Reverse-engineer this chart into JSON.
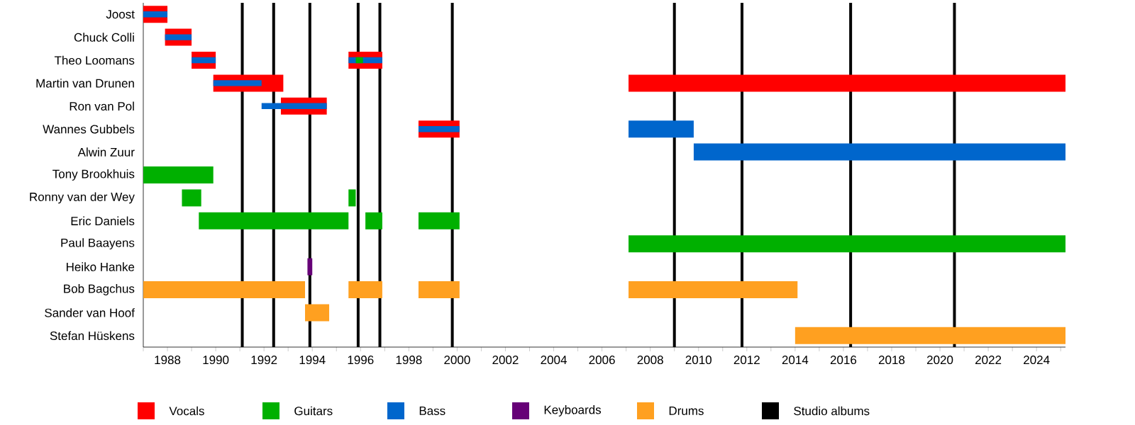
{
  "chart_data": {
    "type": "bar",
    "orientation": "horizontal",
    "legend": "bottom",
    "grid": false,
    "categories": [
      "Joost",
      "Chuck Colli",
      "Theo Loomans",
      "Martin van Drunen",
      "Ron van Pol",
      "Wannes Gubbels",
      "Alwin Zuur",
      "Tony Brookhuis",
      "Ronny van der Wey",
      "Eric Daniels",
      "Paul Baayens",
      "Heiko Hanke",
      "Bob Bagchus",
      "Sander van Hoof",
      "Stefan Hüskens"
    ],
    "xlim": [
      1987,
      2025.2
    ],
    "xticks": [
      {
        "value": 1987,
        "label": null
      },
      1988,
      {
        "value": 1989,
        "label": null
      },
      1990,
      {
        "value": 1991,
        "label": null
      },
      1992,
      {
        "value": 1993,
        "label": null
      },
      1994,
      {
        "value": 1995,
        "label": null
      },
      1996,
      {
        "value": 1997,
        "label": null
      },
      1998,
      {
        "value": 1999,
        "label": null
      },
      2000,
      {
        "value": 2001,
        "label": null
      },
      2002,
      {
        "value": 2003,
        "label": null
      },
      2004,
      {
        "value": 2005,
        "label": null
      },
      2006,
      {
        "value": 2007,
        "label": null
      },
      2008,
      {
        "value": 2009,
        "label": null
      },
      2010,
      {
        "value": 2011,
        "label": null
      },
      2012,
      {
        "value": 2013,
        "label": null
      },
      2014,
      {
        "value": 2015,
        "label": null
      },
      2016,
      {
        "value": 2017,
        "label": null
      },
      2018,
      {
        "value": 2019,
        "label": null
      },
      2020,
      {
        "value": 2021,
        "label": null
      },
      2022,
      {
        "value": 2023,
        "label": null
      },
      2024,
      {
        "value": 2025,
        "label": null
      }
    ],
    "series": [
      {
        "name": "Vocals",
        "color": "#ff0000",
        "base": [
          1987.0,
          1987.9,
          1989.0,
          1989.9,
          1992.7,
          1998.4,
          null,
          null,
          null,
          null,
          null,
          null,
          null,
          null,
          null
        ],
        "values": [
          1.0,
          1.1,
          1.0,
          2.9,
          1.9,
          1.7,
          null,
          null,
          null,
          null,
          null,
          null,
          null,
          null,
          null
        ]
      },
      {
        "color": "#ff0000",
        "base": [
          null,
          null,
          1995.5,
          2007.1,
          null,
          null,
          null,
          null,
          null,
          null,
          null,
          null,
          null,
          null,
          null
        ],
        "values": [
          null,
          null,
          1.4,
          18.1,
          null,
          null,
          null,
          null,
          null,
          null,
          null,
          null,
          null,
          null,
          null
        ]
      },
      {
        "name": "Guitars",
        "color": "#00b000",
        "base": [
          null,
          null,
          null,
          null,
          null,
          null,
          null,
          1987.0,
          1988.6,
          1989.3,
          2007.1,
          null,
          null,
          null,
          null
        ],
        "values": [
          null,
          null,
          null,
          null,
          null,
          null,
          null,
          2.9,
          0.8,
          6.2,
          18.1,
          null,
          null,
          null,
          null
        ]
      },
      {
        "color": "#00b000",
        "base": [
          null,
          null,
          null,
          null,
          null,
          null,
          null,
          null,
          1995.5,
          1996.2,
          null,
          null,
          null,
          null,
          null
        ],
        "values": [
          null,
          null,
          null,
          null,
          null,
          null,
          null,
          null,
          0.3,
          0.7,
          null,
          null,
          null,
          null,
          null
        ]
      },
      {
        "color": "#00b000",
        "base": [
          null,
          null,
          null,
          null,
          null,
          null,
          null,
          null,
          null,
          1998.4,
          null,
          null,
          null,
          null,
          null
        ],
        "values": [
          null,
          null,
          null,
          null,
          null,
          null,
          null,
          null,
          null,
          1.7,
          null,
          null,
          null,
          null,
          null
        ]
      },
      {
        "name": "Bass",
        "color": "#0066cc",
        "base": [
          1987.0,
          1987.9,
          1989.0,
          1989.9,
          1991.9,
          1998.4,
          null,
          null,
          null,
          null,
          null,
          null,
          null,
          null,
          null
        ],
        "values": [
          1.0,
          1.1,
          1.0,
          2.0,
          2.7,
          1.7,
          null,
          null,
          null,
          null,
          null,
          null,
          null,
          null,
          null
        ]
      },
      {
        "color": "#0066cc",
        "base": [
          null,
          null,
          1995.5,
          null,
          null,
          2007.1,
          2009.8,
          null,
          null,
          null,
          null,
          null,
          null,
          null,
          null
        ],
        "values": [
          null,
          null,
          1.4,
          null,
          null,
          2.7,
          15.4,
          null,
          null,
          null,
          null,
          null,
          null,
          null,
          null
        ]
      },
      {
        "color": "#00b000",
        "base": [
          null,
          null,
          1995.8,
          null,
          null,
          null,
          null,
          null,
          null,
          null,
          null,
          null,
          null,
          null,
          null
        ],
        "values": [
          null,
          null,
          0.3,
          null,
          null,
          null,
          null,
          null,
          null,
          null,
          null,
          null,
          null,
          null,
          null
        ]
      },
      {
        "name": "Keyboards",
        "color": "#660077",
        "base": [
          null,
          null,
          null,
          null,
          null,
          null,
          null,
          null,
          null,
          null,
          null,
          1993.8,
          null,
          null,
          null
        ],
        "values": [
          null,
          null,
          null,
          null,
          null,
          null,
          null,
          null,
          null,
          null,
          null,
          0.2,
          null,
          null,
          null
        ]
      },
      {
        "name": "Drums",
        "color": "#ffa020",
        "base": [
          null,
          null,
          null,
          null,
          null,
          null,
          null,
          null,
          null,
          null,
          null,
          null,
          1987.0,
          1993.7,
          2014.0
        ],
        "values": [
          null,
          null,
          null,
          null,
          null,
          null,
          null,
          null,
          null,
          null,
          null,
          null,
          6.7,
          1.0,
          11.2
        ]
      },
      {
        "color": "#ffa020",
        "base": [
          null,
          null,
          null,
          null,
          null,
          null,
          null,
          null,
          null,
          null,
          null,
          null,
          1995.5,
          null,
          null
        ],
        "values": [
          null,
          null,
          null,
          null,
          null,
          null,
          null,
          null,
          null,
          null,
          null,
          null,
          1.4,
          null,
          null
        ]
      },
      {
        "color": "#ffa020",
        "base": [
          null,
          null,
          null,
          null,
          null,
          null,
          null,
          null,
          null,
          null,
          null,
          null,
          1998.4,
          null,
          null
        ],
        "values": [
          null,
          null,
          null,
          null,
          null,
          null,
          null,
          null,
          null,
          null,
          null,
          null,
          1.7,
          null,
          null
        ]
      },
      {
        "color": "#ffa020",
        "base": [
          null,
          null,
          null,
          null,
          null,
          null,
          null,
          null,
          null,
          null,
          null,
          null,
          2007.1,
          null,
          null
        ],
        "values": [
          null,
          null,
          null,
          null,
          null,
          null,
          null,
          null,
          null,
          null,
          null,
          null,
          7.0,
          null,
          null
        ]
      }
    ],
    "ref_lines": [
      {
        "axis": "x",
        "value": 1991.1,
        "label": "Studio albums",
        "color": "#000000"
      },
      {
        "axis": "x",
        "value": 1992.4,
        "color": "#000000"
      },
      {
        "axis": "x",
        "value": 1993.9,
        "color": "#000000"
      },
      {
        "axis": "x",
        "value": 1995.9,
        "color": "#000000"
      },
      {
        "axis": "x",
        "value": 1996.8,
        "color": "#000000"
      },
      {
        "axis": "x",
        "value": 1999.8,
        "color": "#000000"
      },
      {
        "axis": "x",
        "value": 2009.0,
        "color": "#000000"
      },
      {
        "axis": "x",
        "value": 2011.8,
        "color": "#000000"
      },
      {
        "axis": "x",
        "value": 2016.3,
        "color": "#000000"
      },
      {
        "axis": "x",
        "value": 2020.6,
        "color": "#000000"
      }
    ]
  }
}
